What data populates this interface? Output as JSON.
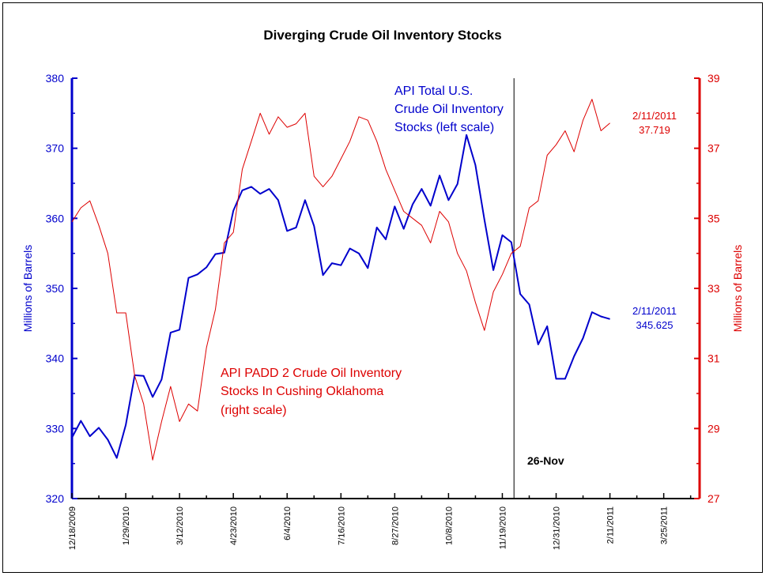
{
  "chart_data": {
    "type": "line",
    "title": "Diverging Crude Oil Inventory Stocks",
    "ylabel_left": "Millions of Barrels",
    "ylabel_right": "Millions of Barrels",
    "ylim_left": [
      320,
      380
    ],
    "ylim_right": [
      27,
      39
    ],
    "yticks_left": [
      "320",
      "330",
      "340",
      "350",
      "360",
      "370",
      "380"
    ],
    "yticks_right": [
      "27",
      "29",
      "31",
      "33",
      "35",
      "37",
      "39"
    ],
    "x_tick_labels": [
      "12/18/2009",
      "1/29/2010",
      "3/12/2010",
      "4/23/2010",
      "6/4/2010",
      "7/16/2010",
      "8/27/2010",
      "10/8/2010",
      "11/19/2010",
      "12/31/2010",
      "2/11/2011",
      "3/25/2011"
    ],
    "x_range_weeks": [
      0,
      70
    ],
    "grid": false,
    "colors": {
      "left_series": "#0000cc",
      "right_series": "#dd0000",
      "vline": "#000000"
    },
    "vline": {
      "week": 49.3,
      "label": "26-Nov"
    },
    "series": [
      {
        "name": "API Total U.S. Crude Oil Inventory Stocks (left scale)",
        "axis": "left",
        "values": [
          328.7,
          331.1,
          328.9,
          330.1,
          328.4,
          325.8,
          330.5,
          337.6,
          337.5,
          334.5,
          337.0,
          343.7,
          344.1,
          351.5,
          352.0,
          353.0,
          354.9,
          355.1,
          361.1,
          364.0,
          364.5,
          363.5,
          364.2,
          362.6,
          358.2,
          358.7,
          362.6,
          358.9,
          351.9,
          353.6,
          353.3,
          355.7,
          355.0,
          352.9,
          358.7,
          357.0,
          361.7,
          358.5,
          362.0,
          364.2,
          361.8,
          366.1,
          362.6,
          364.9,
          371.9,
          367.6,
          359.8,
          352.6,
          357.6,
          356.6,
          349.2,
          347.7,
          342.0,
          344.6,
          337.1,
          337.1,
          340.3,
          342.9,
          346.6,
          346.0,
          345.625
        ]
      },
      {
        "name": "API PADD 2 Crude Oil Inventory Stocks In Cushing Oklahoma (right scale)",
        "axis": "right",
        "values": [
          34.9,
          35.3,
          35.5,
          34.8,
          34.0,
          32.3,
          32.3,
          30.5,
          29.7,
          28.1,
          29.2,
          30.2,
          29.2,
          29.7,
          29.5,
          31.3,
          32.4,
          34.3,
          34.6,
          36.4,
          37.2,
          38.0,
          37.4,
          37.9,
          37.6,
          37.7,
          38.0,
          36.2,
          35.9,
          36.2,
          36.7,
          37.2,
          37.9,
          37.8,
          37.2,
          36.4,
          35.8,
          35.2,
          35.0,
          34.8,
          34.3,
          35.2,
          34.9,
          34.0,
          33.5,
          32.6,
          31.8,
          32.9,
          33.4,
          34.0,
          34.2,
          35.3,
          35.5,
          36.8,
          37.1,
          37.5,
          36.9,
          37.8,
          38.4,
          37.5,
          37.719
        ]
      }
    ],
    "annotations": {
      "blue_label": [
        "API Total U.S.",
        "Crude Oil Inventory",
        "Stocks (left scale)"
      ],
      "red_label": [
        "API PADD 2 Crude Oil Inventory",
        "Stocks In Cushing Oklahoma",
        "(right scale)"
      ],
      "blue_end": [
        "2/11/2011",
        "345.625"
      ],
      "red_end": [
        "2/11/2011",
        "37.719"
      ]
    }
  }
}
